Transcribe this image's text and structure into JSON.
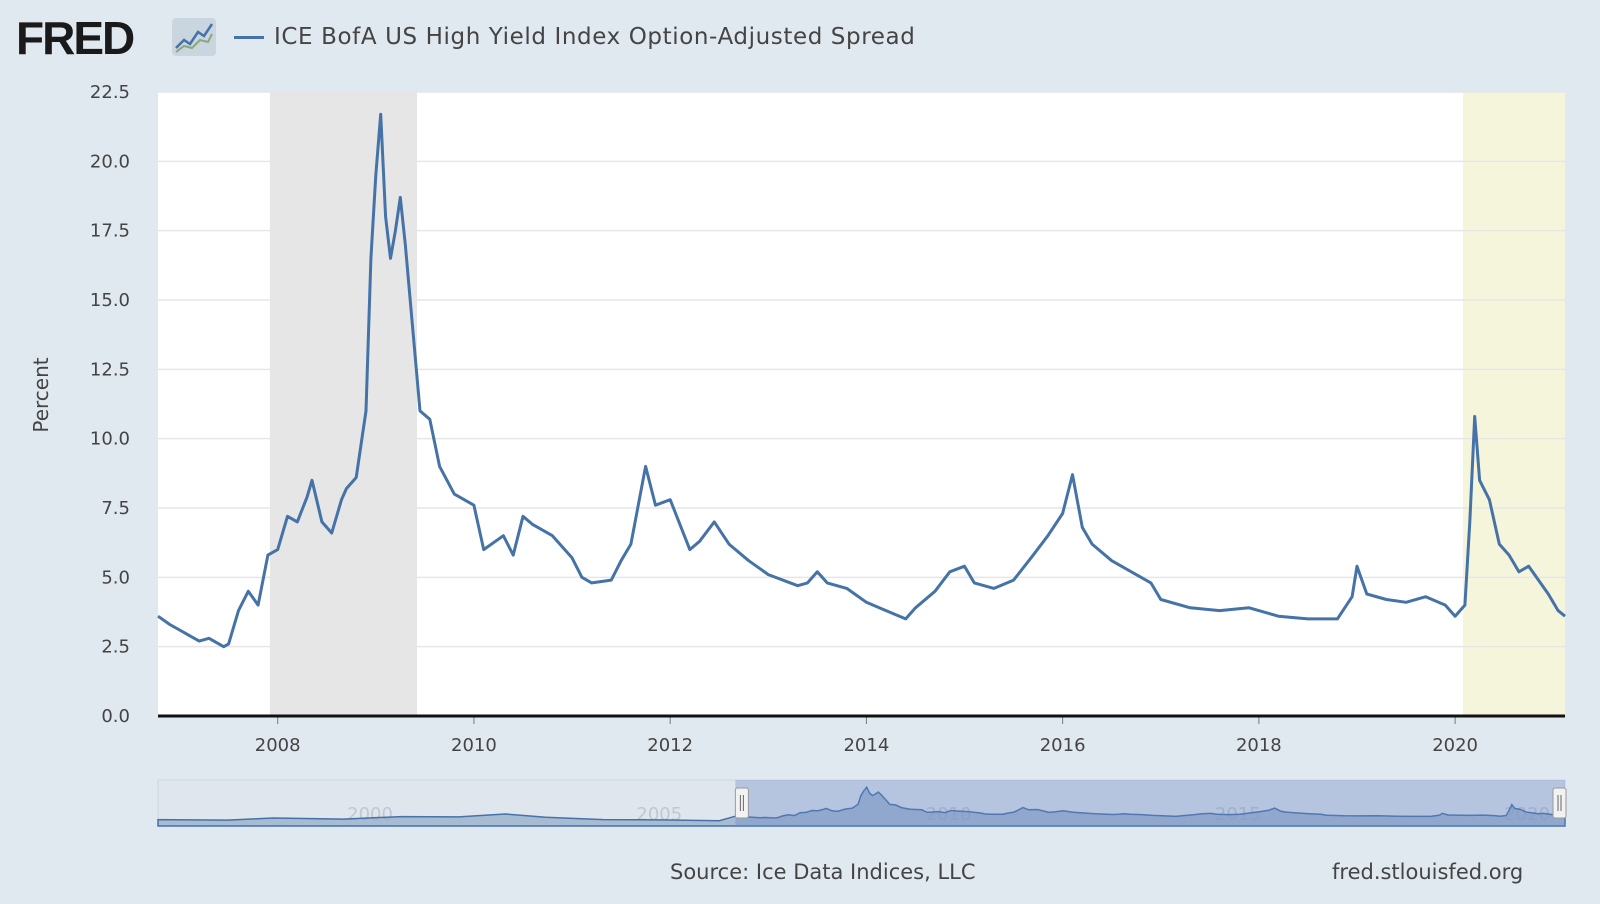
{
  "header": {
    "logo_text": "FRED",
    "legend_label": "ICE BofA US High Yield Index Option-Adjusted Spread"
  },
  "colors": {
    "series": "#4572a7",
    "background": "#e1e9f0",
    "plot_background": "#ffffff",
    "recession_band": "#e6e6e6",
    "highlight_band": "#f5f5dc"
  },
  "footer": {
    "source": "Source: Ice Data Indices, LLC",
    "site": "fred.stlouisfed.org"
  },
  "chart_data": {
    "type": "line",
    "title": "",
    "xlabel": "",
    "ylabel": "Percent",
    "xlim": [
      2006.78,
      2021.12
    ],
    "ylim": [
      0,
      22.5
    ],
    "yticks": [
      0.0,
      2.5,
      5.0,
      7.5,
      10.0,
      12.5,
      15.0,
      17.5,
      20.0,
      22.5
    ],
    "xticks": [
      2008,
      2010,
      2012,
      2014,
      2016,
      2018,
      2020
    ],
    "grid": true,
    "legend": "top-left",
    "shaded_periods": [
      {
        "start": 2007.92,
        "end": 2009.42,
        "kind": "recession"
      },
      {
        "start": 2020.08,
        "end": 2021.12,
        "kind": "highlight"
      }
    ],
    "series": [
      {
        "name": "ICE BofA US High Yield Index Option-Adjusted Spread",
        "x": [
          2006.78,
          2006.9,
          2007.0,
          2007.1,
          2007.2,
          2007.3,
          2007.45,
          2007.5,
          2007.6,
          2007.7,
          2007.8,
          2007.9,
          2008.0,
          2008.1,
          2008.2,
          2008.3,
          2008.35,
          2008.45,
          2008.55,
          2008.65,
          2008.7,
          2008.8,
          2008.9,
          2008.95,
          2009.0,
          2009.05,
          2009.1,
          2009.15,
          2009.2,
          2009.25,
          2009.3,
          2009.4,
          2009.45,
          2009.55,
          2009.65,
          2009.8,
          2010.0,
          2010.1,
          2010.3,
          2010.4,
          2010.5,
          2010.6,
          2010.8,
          2011.0,
          2011.1,
          2011.2,
          2011.4,
          2011.5,
          2011.6,
          2011.75,
          2011.85,
          2012.0,
          2012.2,
          2012.3,
          2012.45,
          2012.6,
          2012.8,
          2013.0,
          2013.3,
          2013.4,
          2013.5,
          2013.6,
          2013.8,
          2014.0,
          2014.2,
          2014.4,
          2014.5,
          2014.7,
          2014.85,
          2015.0,
          2015.1,
          2015.3,
          2015.5,
          2015.7,
          2015.85,
          2016.0,
          2016.1,
          2016.2,
          2016.3,
          2016.5,
          2016.7,
          2016.9,
          2017.0,
          2017.3,
          2017.6,
          2017.9,
          2018.2,
          2018.5,
          2018.8,
          2018.95,
          2019.0,
          2019.1,
          2019.3,
          2019.5,
          2019.7,
          2019.9,
          2020.0,
          2020.1,
          2020.15,
          2020.2,
          2020.25,
          2020.35,
          2020.45,
          2020.55,
          2020.65,
          2020.75,
          2020.85,
          2020.95,
          2021.05,
          2021.12
        ],
        "values": [
          3.6,
          3.3,
          3.1,
          2.9,
          2.7,
          2.8,
          2.5,
          2.6,
          3.8,
          4.5,
          4.0,
          5.8,
          6.0,
          7.2,
          7.0,
          7.9,
          8.5,
          7.0,
          6.6,
          7.8,
          8.2,
          8.6,
          11.0,
          16.5,
          19.5,
          21.7,
          18.0,
          16.5,
          17.5,
          18.7,
          17.0,
          13.0,
          11.0,
          10.7,
          9.0,
          8.0,
          7.6,
          6.0,
          6.5,
          5.8,
          7.2,
          6.9,
          6.5,
          5.7,
          5.0,
          4.8,
          4.9,
          5.6,
          6.2,
          9.0,
          7.6,
          7.8,
          6.0,
          6.3,
          7.0,
          6.2,
          5.6,
          5.1,
          4.7,
          4.8,
          5.2,
          4.8,
          4.6,
          4.1,
          3.8,
          3.5,
          3.9,
          4.5,
          5.2,
          5.4,
          4.8,
          4.6,
          4.9,
          5.8,
          6.5,
          7.3,
          8.7,
          6.8,
          6.2,
          5.6,
          5.2,
          4.8,
          4.2,
          3.9,
          3.8,
          3.9,
          3.6,
          3.5,
          3.5,
          4.3,
          5.4,
          4.4,
          4.2,
          4.1,
          4.3,
          4.0,
          3.6,
          4.0,
          7.0,
          10.8,
          8.5,
          7.8,
          6.2,
          5.8,
          5.2,
          5.4,
          4.9,
          4.4,
          3.8,
          3.6
        ]
      }
    ],
    "navigator": {
      "xlim": [
        1996.8,
        2021.12
      ],
      "selected": [
        2006.78,
        2021.12
      ],
      "tick_labels": [
        "2000",
        "2005",
        "2010",
        "2015",
        "2020"
      ],
      "tick_values": [
        2000,
        2005,
        2010,
        2015,
        2020
      ]
    }
  }
}
